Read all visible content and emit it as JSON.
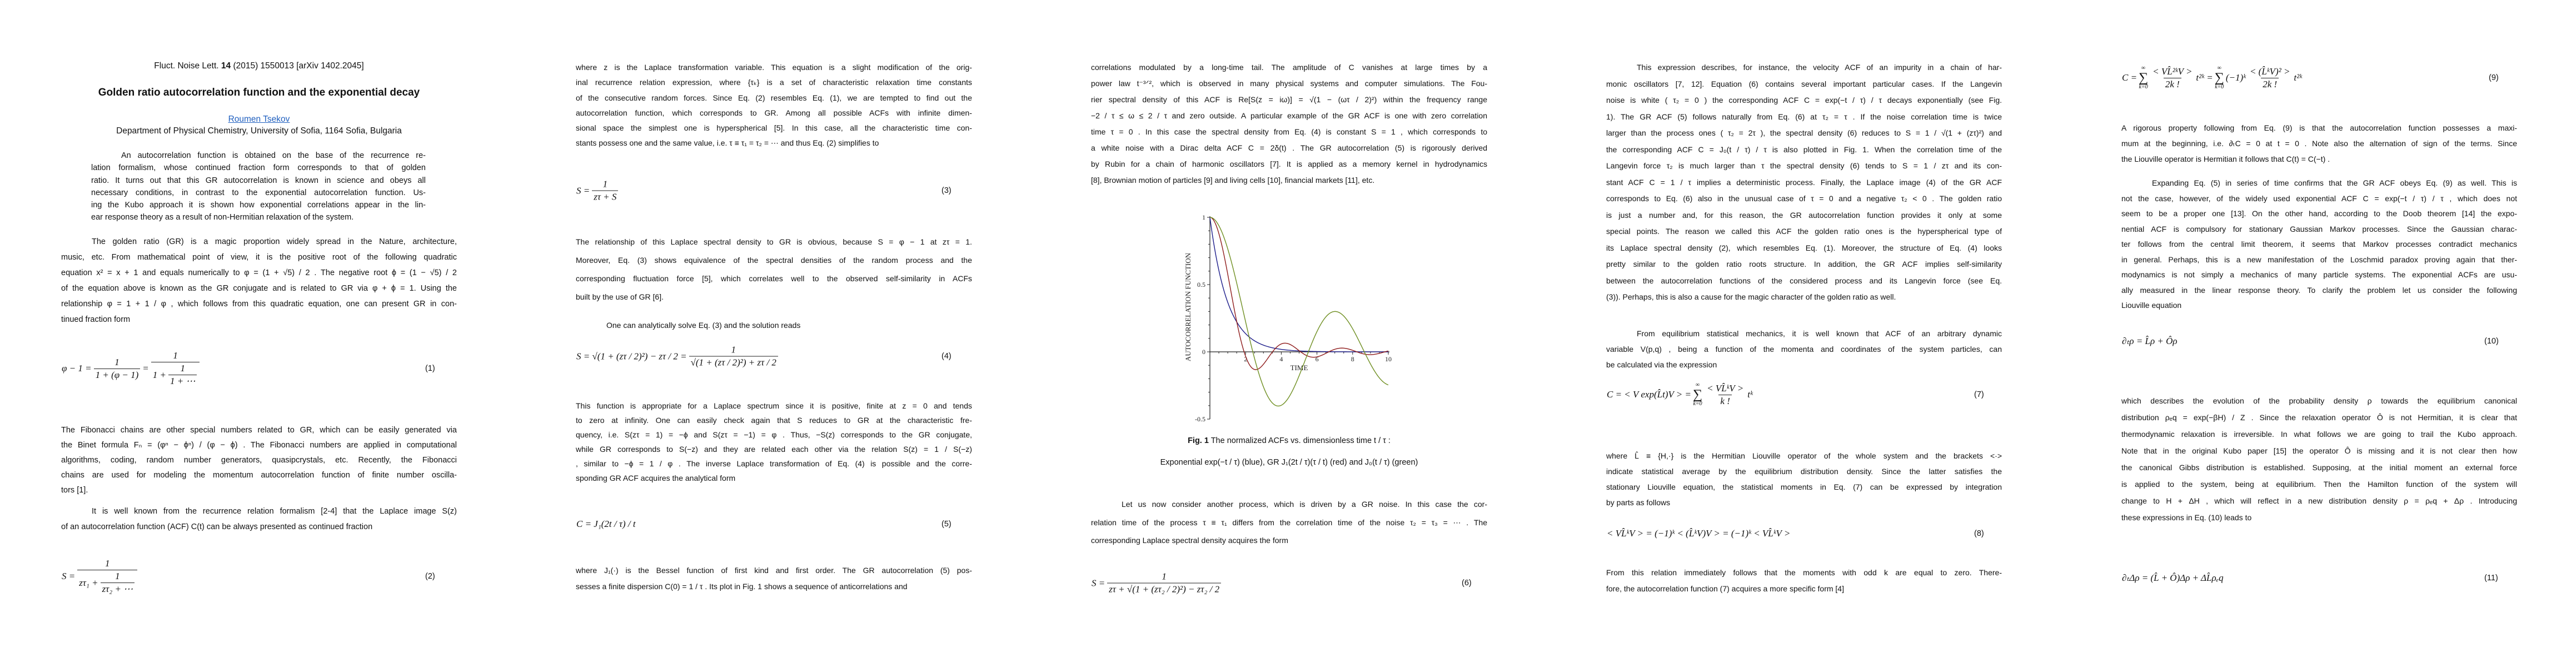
{
  "header": {
    "journal_prefix": "Fluct. Noise Lett. ",
    "volume": "14",
    "journal_suffix": " (2015) 1550013 [arXiv 1402.2045]",
    "title": "Golden ratio autocorrelation function and the exponential decay",
    "author": "Roumen Tsekov",
    "affiliation": "Department of Physical Chemistry, University of Sofia, 1164 Sofia, Bulgaria",
    "link_color": "#1f5fbf"
  },
  "col1": {
    "abstract": [
      "An autocorrelation function is obtained on the base of the recurrence re-",
      "lation formalism, whose continued fraction form corresponds to that of golden",
      "ratio. It turns out that this GR autocorrelation is known in science and obeys all",
      "necessary conditions, in contrast to the exponential autocorrelation function. Us-",
      "ing the Kubo approach it is shown how exponential correlations appear in the lin-",
      "ear response theory as a result of non-Hermitian relaxation of the system."
    ],
    "body1": [
      "The golden ratio (GR) is a magic proportion widely spread in the Nature, architecture,",
      "music, etc. From mathematical point of view, it is the positive root of the following quadratic",
      "equation x² = x + 1 and equals numerically to φ = (1 + √5) / 2 . The negative root ϕ = (1 − √5) / 2",
      "of the equation above is known as the GR conjugate and is related to GR via φ + ϕ = 1. Using the",
      "relationship φ = 1 + 1 / φ , which follows from this quadratic equation, one can present GR in con-",
      "tinued fraction form"
    ],
    "fib": [
      "The Fibonacci chains are other special numbers related to GR, which can be easily generated via",
      "the Binet formula Fₙ = (φⁿ − ϕⁿ) / (φ − ϕ) . The Fibonacci numbers are applied in computational",
      "algorithms, coding, random number generators, quasipcrystals, etc. Recently, the Fibonacci",
      "chains are used for modeling the momentum autocorrelation function of finite number oscilla-",
      "tors [1]."
    ],
    "known": [
      "It is well known from the recurrence relation formalism [2-4] that the Laplace image S(z)",
      "of an autocorrelation function (ACF) C(t) can be always presented as continued fraction"
    ]
  },
  "col2": {
    "p1": [
      "where z is the Laplace transformation variable. This equation is a slight modification of the orig-",
      "inal recurrence relation expression, where {τₖ} is a set of characteristic relaxation time constants",
      "of the consecutive random forces. Since Eq. (2) resembles Eq. (1), we are tempted to find out the",
      "autocorrelation function, which corresponds to GR. Among all possible ACFs with infinite dimen-",
      "sional space the simplest one is hyperspherical [5]. In this case, all the characteristic time con-",
      "stants possess one and the same value, i.e. τ ≡ τ₁ = τ₂ = ⋯ and thus Eq. (2) simplifies to"
    ],
    "rel": [
      "The relationship of this Laplace spectral density to GR is obvious, because S = φ − 1 at zτ = 1.",
      "Moreover, Eq. (3) shows equivalence of the spectral densities of the random process and the",
      "corresponding fluctuation force [5], which correlates well to the observed self-similarity in ACFs",
      "built by the use of GR [6]."
    ],
    "onecan": [
      "One can analytically solve Eq. (3) and the solution reads"
    ],
    "thisfn": [
      "This function is appropriate for a Laplace spectrum since it is positive, finite at z = 0 and tends",
      "to zero at infinity. One can easily check again that S reduces to GR at the characteristic fre-",
      "quency, i.e. S(zτ = 1) = −ϕ and S(zτ = −1) = φ . Thus, −S(z) corresponds to the GR conjugate,",
      "while GR corresponds to S(−z) and they are related each other via the relation S(z) = 1 / S(−z)",
      ", similar to −ϕ = 1 / φ . The inverse Laplace transformation of Eq. (4) is possible and the corre-",
      "sponding GR ACF acquires the analytical form"
    ],
    "whereJ": [
      "where J₁(·) is the Bessel function of first kind and first order. The GR autocorrelation (5) pos-",
      "sesses a finite dispersion C(0) = 1 / τ . Its plot in Fig. 1 shows a sequence of anticorrelations and"
    ]
  },
  "col3": {
    "p1": [
      "correlations modulated by a long-time tail. The amplitude of C vanishes at large times by a",
      "power law t⁻³ᐟ², which is observed in many physical systems and computer simulations. The Fou-",
      "rier spectral density of this ACF is Re[S(z = iω)] = √(1 − (ωτ / 2)²) within the frequency range",
      "−2 / τ ≤ ω ≤ 2 / τ and zero outside. A particular example of the GR ACF is one with zero correlation",
      "time τ = 0 . In this case the spectral density from Eq. (4) is constant S = 1 , which corresponds to",
      "a white noise with a Dirac delta ACF C = 2δ(t) . The GR autocorrelation (5) is rigorously derived",
      "by Rubin for a chain of harmonic oscillators [7]. It is applied as a memory kernel in hydrodynamics",
      "[8], Brownian motion of particles [9] and living cells [10], financial markets [11], etc."
    ],
    "caption_label": "Fig. 1",
    "caption_text": " The normalized ACFs vs. dimensionless time t / τ :",
    "caption_line2": "Exponential exp(−t / τ) (blue), GR J₁(2t / τ)(τ / t) (red) and J₀(t / τ) (green)",
    "letus": [
      "Let us now consider another process, which is driven by a GR noise. In this case the cor-",
      "relation time of the process τ ≡ τ₁ differs from the correlation time of the noise τ₂ = τ₃ = ⋯ . The",
      "corresponding Laplace spectral density acquires the form"
    ]
  },
  "col4": {
    "p1": [
      "This expression describes, for instance, the velocity ACF of an impurity in a chain of har-",
      "monic oscillators [7, 12]. Equation (6) contains several important particular cases. If the Langevin",
      "noise is white ( τ₂ = 0 ) the corresponding ACF C = exp(−t / τ) / τ decays exponentially (see Fig.",
      "1). The GR ACF (5) follows naturally from Eq. (6) at τ₂ = τ . If the noise correlation time is twice",
      "larger than the process ones ( τ₂ = 2τ ), the spectral density (6) reduces to S = 1 / √(1 + (zτ)²) and",
      "the corresponding ACF C = J₀(t / τ) / τ is also plotted in Fig. 1. When the correlation time of the",
      "Langevin force τ₂ is much larger than τ the spectral density (6) tends to S = 1 / zτ and its con-",
      "stant ACF C = 1 / τ implies a deterministic process. Finally, the Laplace image (4) of the GR ACF",
      "corresponds to Eq. (6) also in the unusual case of τ = 0 and a negative τ₂ < 0 . The golden ratio",
      "is just a number and, for this reason, the GR autocorrelation function provides it only at some",
      "special points. The reason we called this ACF the golden ratio ones is the hyperspherical type of",
      "its Laplace spectral density (2), which resembles Eq. (1). Moreover, the structure of Eq. (4) looks",
      "pretty similar to the golden ratio roots structure. In addition, the GR ACF implies self-similarity",
      "between the autocorrelation functions of the considered process and its Langevin force (see Eq.",
      "(3)). Perhaps, this is also a cause for the magic character of the golden ratio as well."
    ],
    "from": [
      "From equilibrium statistical mechanics, it is well known that ACF of an arbitrary dynamic",
      "variable V(p,q) , being a function of the momenta and coordinates of the system particles, can",
      "be calculated via the expression"
    ],
    "whereL": [
      "where L̂ ≡ {H,·} is the Hermitian Liouville operator of the whole system and the brackets <·>",
      "indicate statistical average by the equilibrium distribution density. Since the latter satisfies the",
      "stationary Liouville equation, the statistical moments in Eq. (7) can be expressed by integration",
      "by parts as follows"
    ],
    "fromthis": [
      "From this relation immediately follows that the moments with odd k are equal to zero. There-",
      "fore, the autocorrelation function (7) acquires a more specific form [4]"
    ]
  },
  "col5": {
    "rig": [
      "A rigorous property following from Eq. (9) is that the autocorrelation function possesses a maxi-",
      "mum at the beginning, i.e. ∂ₜC = 0 at t = 0 . Note also the alternation of sign of the terms. Since",
      "the Liouville operator is Hermitian it follows that C(t) = C(−t) ."
    ],
    "exp": [
      "Expanding Eq. (5) in series of time confirms that the GR ACF obeys Eq. (9) as well. This is",
      "not the case, however, of the widely used exponential ACF C = exp(−t / τ) / τ , which does not",
      "seem to be a proper one [13]. On the other hand, according to the Doob theorem [14] the expo-",
      "nential ACF is compulsory for stationary Gaussian Markov processes. Since the Gaussian charac-",
      "ter follows from the central limit theorem, it seems that Markov processes contradict mechanics",
      "in general. Perhaps, this is a new manifestation of the Loschmid paradox proving again that ther-",
      "modynamics is not simply a mechanics of many particle systems. The exponential ACFs are usu-",
      "ally measured in the linear response theory. To clarify the problem let us consider the following",
      "Liouville equation"
    ],
    "which": [
      "which describes the evolution of the probability density ρ towards the equilibrium canonical",
      "distribution ρₑq = exp(−βH) / Z . Since the relaxation operator Ô is not Hermitian, it is clear that",
      "thermodynamic relaxation is irreversible. In what follows we are going to trail the Kubo approach.",
      "Note that in the original Kubo paper [15] the operator Ô is missing and it is not clear then how",
      "the canonical Gibbs distribution is established. Supposing, at the initial moment an external force",
      "is applied to the system, being at equilibrium. Then the Hamilton function of the system will",
      "change to H + ΔH , which will reflect in a new distribution density ρ = ρₑq + Δρ . Introducing",
      "these expressions in Eq. (10) leads to"
    ]
  },
  "equations": {
    "eq1": {
      "number": "(1)",
      "tokens": [
        "φ − 1 =",
        {
          "frac": [
            [
              "1"
            ],
            [
              "1 + (φ − 1)"
            ]
          ]
        },
        "=",
        {
          "frac": [
            [
              "1"
            ],
            [
              "1 +",
              {
                "frac": [
                  [
                    "1"
                  ],
                  [
                    "1 + ⋯"
                  ]
                ]
              }
            ]
          ]
        }
      ]
    },
    "eq2": {
      "number": "(2)",
      "tokens": [
        "S =",
        {
          "frac": [
            [
              "1"
            ],
            [
              "zτ₁ +",
              {
                "frac": [
                  [
                    "1"
                  ],
                  [
                    "zτ₂ + ⋯"
                  ]
                ]
              }
            ]
          ]
        }
      ]
    },
    "eq3": {
      "number": "(3)",
      "tokens": [
        "S =",
        {
          "frac": [
            [
              "1"
            ],
            [
              "zτ + S"
            ]
          ]
        }
      ]
    },
    "eq4": {
      "number": "(4)",
      "tokens": [
        "S = √(1 + (zτ / 2)²) − zτ / 2 =",
        {
          "frac": [
            [
              "1"
            ],
            [
              "√(1 + (zτ / 2)²) + zτ / 2"
            ]
          ]
        }
      ]
    },
    "eq5": {
      "number": "(5)",
      "tokens": [
        "C = J₁(2t / τ) / t"
      ]
    },
    "eq6": {
      "number": "(6)",
      "tokens": [
        "S =",
        {
          "frac": [
            [
              "1"
            ],
            [
              "zτ + √(1 + (zτ₂ / 2)²) − zτ₂ / 2"
            ]
          ]
        }
      ]
    },
    "eq7": {
      "number": "(7)",
      "tokens": [
        "C = < V exp(L̂t)V > =",
        {
          "sum": {
            "top": "∞",
            "sym": "∑",
            "bot": "k=0"
          }
        },
        {
          "frac": [
            [
              "< VL̂ᵏV >"
            ],
            [
              "k !"
            ]
          ]
        },
        "tᵏ"
      ]
    },
    "eq8": {
      "number": "(8)",
      "tokens": [
        "< VL̂ᵏV > = (−1)ᵏ < (L̂ᵏV)V > = (−1)ᵏ < VL̂ᵏV >"
      ]
    },
    "eq9": {
      "number": "(9)",
      "tokens": [
        "C =",
        {
          "sum": {
            "top": "∞",
            "sym": "∑",
            "bot": "k=0"
          }
        },
        {
          "frac": [
            [
              "< VL̂²ᵏV >"
            ],
            [
              "2k !"
            ]
          ]
        },
        "t²ᵏ =",
        {
          "sum": {
            "top": "∞",
            "sym": "∑",
            "bot": "k=0"
          }
        },
        "(−1)ᵏ",
        {
          "frac": [
            [
              "< (L̂ᵏV)² >"
            ],
            [
              "2k !"
            ]
          ]
        },
        "t²ᵏ"
      ]
    },
    "eq10": {
      "number": "(10)",
      "tokens": [
        "∂ₜρ = L̂ρ + Ôρ"
      ]
    },
    "eq11": {
      "number": "(11)",
      "tokens": [
        "∂ₜΔρ = (L̂ + Ô)Δρ + ΔL̂ρₑq"
      ]
    }
  },
  "chart_data": {
    "type": "line",
    "title": "",
    "xlabel": "TIME",
    "ylabel": "AUTOCORRELATION FUNCTION",
    "xlim": [
      0,
      10
    ],
    "ylim": [
      -0.5,
      1
    ],
    "xticks": [
      "2",
      "4",
      "6",
      "8",
      "10"
    ],
    "yticks": [
      "-0.5",
      "0",
      "0.5",
      "1"
    ],
    "grid": false,
    "legend": "none",
    "x": [
      0,
      1,
      2,
      3,
      4,
      5,
      6,
      7,
      8,
      9,
      10
    ],
    "series": [
      {
        "formula": "exp(−t / τ)",
        "kind": "exponential",
        "color": "#1c1c8a",
        "values": [
          1,
          0.368,
          0.135,
          0.05,
          0.018,
          0.007,
          0.002,
          0.001,
          0.0003,
          0.0001,
          5e-05
        ]
      },
      {
        "formula": "J₁(2t / τ)(τ / t)",
        "kind": "bessel_j1_2t_over_t",
        "color": "#8e1b1b",
        "values": [
          1,
          0.577,
          -0.033,
          -0.092,
          0.059,
          0.009,
          -0.037,
          0.019,
          0.011,
          -0.021,
          0.007
        ]
      },
      {
        "formula": "J₀(t / τ)",
        "kind": "bessel_j0",
        "color": "#6f8f22",
        "values": [
          1,
          0.765,
          0.224,
          -0.26,
          -0.397,
          -0.178,
          0.151,
          0.3,
          0.172,
          -0.09,
          -0.246
        ]
      }
    ]
  }
}
